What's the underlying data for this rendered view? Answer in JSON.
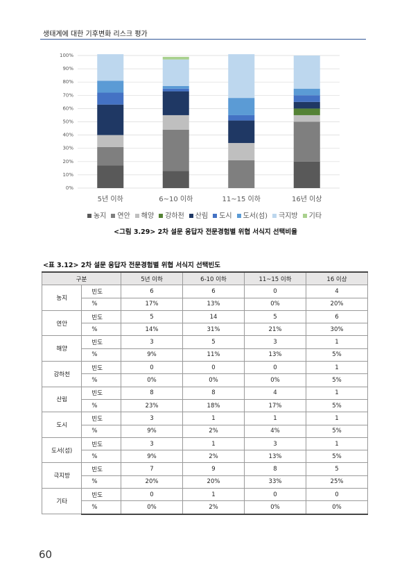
{
  "header": {
    "title": "생태계에 대한 기후변화 리스크 평가"
  },
  "chart_data": {
    "type": "stacked_bar",
    "categories": [
      "5년 이하",
      "6~10 이하",
      "11~15 이하",
      "16년 이상"
    ],
    "series": [
      {
        "name": "농지",
        "color": "#595959",
        "values": [
          17,
          13,
          0,
          20
        ]
      },
      {
        "name": "연안",
        "color": "#7f7f7f",
        "values": [
          14,
          31,
          21,
          30
        ]
      },
      {
        "name": "해양",
        "color": "#bfbfbf",
        "values": [
          9,
          11,
          13,
          5
        ]
      },
      {
        "name": "강하천",
        "color": "#548235",
        "values": [
          0,
          0,
          0,
          5
        ]
      },
      {
        "name": "산림",
        "color": "#1f3864",
        "values": [
          23,
          18,
          17,
          5
        ]
      },
      {
        "name": "도시",
        "color": "#4472c4",
        "values": [
          9,
          2,
          4,
          5
        ]
      },
      {
        "name": "도서(섬)",
        "color": "#5b9bd5",
        "values": [
          9,
          2,
          13,
          5
        ]
      },
      {
        "name": "극지방",
        "color": "#bdd7ee",
        "values": [
          20,
          20,
          33,
          25
        ]
      },
      {
        "name": "기타",
        "color": "#a9d18e",
        "values": [
          0,
          2,
          0,
          0
        ]
      }
    ],
    "ylim": [
      0,
      100
    ],
    "yticks": [
      {
        "value": 0,
        "label": "0%"
      },
      {
        "value": 10,
        "label": "10%"
      },
      {
        "value": 20,
        "label": "20%"
      },
      {
        "value": 30,
        "label": "30%"
      },
      {
        "value": 40,
        "label": "40%"
      },
      {
        "value": 50,
        "label": "50%"
      },
      {
        "value": 60,
        "label": "60%"
      },
      {
        "value": 70,
        "label": "70%"
      },
      {
        "value": 80,
        "label": "80%"
      },
      {
        "value": 90,
        "label": "90%"
      },
      {
        "value": 100,
        "label": "100%"
      }
    ],
    "grid": true,
    "legend": "bottom"
  },
  "figure_caption": "<그림 3.29> 2차 설문 응답자 전문경험별 위협 서식지 선택비율",
  "table": {
    "caption": "<표 3.12> 2차 설문 응답자 전문경험별 위협 서식지 선택빈도",
    "columns": [
      "구분",
      "5년 이하",
      "6-10 이하",
      "11~15 이하",
      "16 이상"
    ],
    "groups": [
      {
        "name": "농지",
        "rows": [
          {
            "label": "빈도",
            "cells": [
              "6",
              "6",
              "0",
              "4"
            ]
          },
          {
            "label": "%",
            "cells": [
              "17%",
              "13%",
              "0%",
              "20%"
            ]
          }
        ]
      },
      {
        "name": "연안",
        "rows": [
          {
            "label": "빈도",
            "cells": [
              "5",
              "14",
              "5",
              "6"
            ]
          },
          {
            "label": "%",
            "cells": [
              "14%",
              "31%",
              "21%",
              "30%"
            ]
          }
        ]
      },
      {
        "name": "해양",
        "rows": [
          {
            "label": "빈도",
            "cells": [
              "3",
              "5",
              "3",
              "1"
            ]
          },
          {
            "label": "%",
            "cells": [
              "9%",
              "11%",
              "13%",
              "5%"
            ]
          }
        ]
      },
      {
        "name": "강하천",
        "rows": [
          {
            "label": "빈도",
            "cells": [
              "0",
              "0",
              "0",
              "1"
            ]
          },
          {
            "label": "%",
            "cells": [
              "0%",
              "0%",
              "0%",
              "5%"
            ]
          }
        ]
      },
      {
        "name": "산림",
        "rows": [
          {
            "label": "빈도",
            "cells": [
              "8",
              "8",
              "4",
              "1"
            ]
          },
          {
            "label": "%",
            "cells": [
              "23%",
              "18%",
              "17%",
              "5%"
            ]
          }
        ]
      },
      {
        "name": "도시",
        "rows": [
          {
            "label": "빈도",
            "cells": [
              "3",
              "1",
              "1",
              "1"
            ]
          },
          {
            "label": "%",
            "cells": [
              "9%",
              "2%",
              "4%",
              "5%"
            ]
          }
        ]
      },
      {
        "name": "도서(섬)",
        "rows": [
          {
            "label": "빈도",
            "cells": [
              "3",
              "1",
              "3",
              "1"
            ]
          },
          {
            "label": "%",
            "cells": [
              "9%",
              "2%",
              "13%",
              "5%"
            ]
          }
        ]
      },
      {
        "name": "극지방",
        "rows": [
          {
            "label": "빈도",
            "cells": [
              "7",
              "9",
              "8",
              "5"
            ]
          },
          {
            "label": "%",
            "cells": [
              "20%",
              "20%",
              "33%",
              "25%"
            ]
          }
        ]
      },
      {
        "name": "기타",
        "rows": [
          {
            "label": "빈도",
            "cells": [
              "0",
              "1",
              "0",
              "0"
            ]
          },
          {
            "label": "%",
            "cells": [
              "0%",
              "2%",
              "0%",
              "0%"
            ]
          }
        ]
      }
    ]
  },
  "page_number": "60"
}
